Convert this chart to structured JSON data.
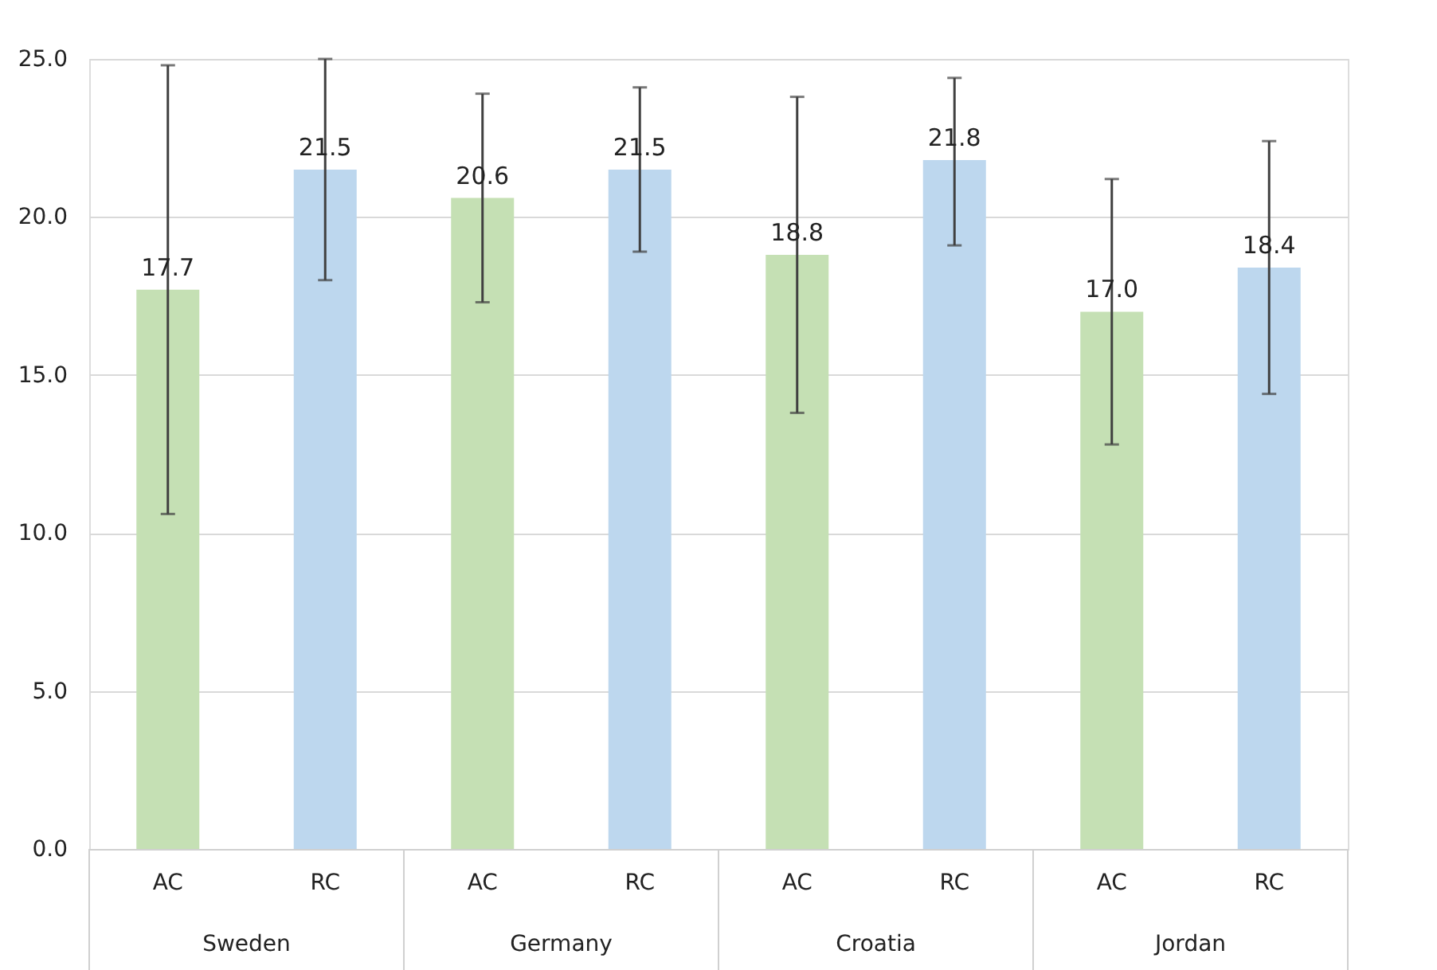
{
  "chart_data": {
    "type": "bar",
    "categories": [
      "AC",
      "RC",
      "AC",
      "RC",
      "AC",
      "RC",
      "AC",
      "RC"
    ],
    "values": [
      17.7,
      21.5,
      20.6,
      21.5,
      18.8,
      21.8,
      17.0,
      18.4
    ],
    "colors": [
      "#c5e0b4",
      "#bdd7ee",
      "#c5e0b4",
      "#bdd7ee",
      "#c5e0b4",
      "#bdd7ee",
      "#c5e0b4",
      "#bdd7ee"
    ],
    "errors": [
      [
        10.6,
        24.8
      ],
      [
        18.0,
        25.0
      ],
      [
        17.3,
        23.9
      ],
      [
        18.9,
        24.1
      ],
      [
        13.8,
        23.8
      ],
      [
        19.1,
        24.4
      ],
      [
        12.8,
        21.2
      ],
      [
        14.4,
        22.4
      ]
    ],
    "value_labels": [
      "17.7",
      "21.5",
      "20.6",
      "21.5",
      "18.8",
      "21.8",
      "17.0",
      "18.4"
    ],
    "annotations": [
      "Sweden",
      "Germany",
      "Croatia",
      "Jordan"
    ],
    "ylim": [
      0,
      25
    ],
    "yticks": [
      {
        "value": 0,
        "label": "0.0"
      },
      {
        "value": 5,
        "label": "5.0"
      },
      {
        "value": 10,
        "label": "10.0"
      },
      {
        "value": 15,
        "label": "15.0"
      },
      {
        "value": 20,
        "label": "20.0"
      },
      {
        "value": 25,
        "label": "25.0"
      }
    ],
    "grid": "y"
  }
}
